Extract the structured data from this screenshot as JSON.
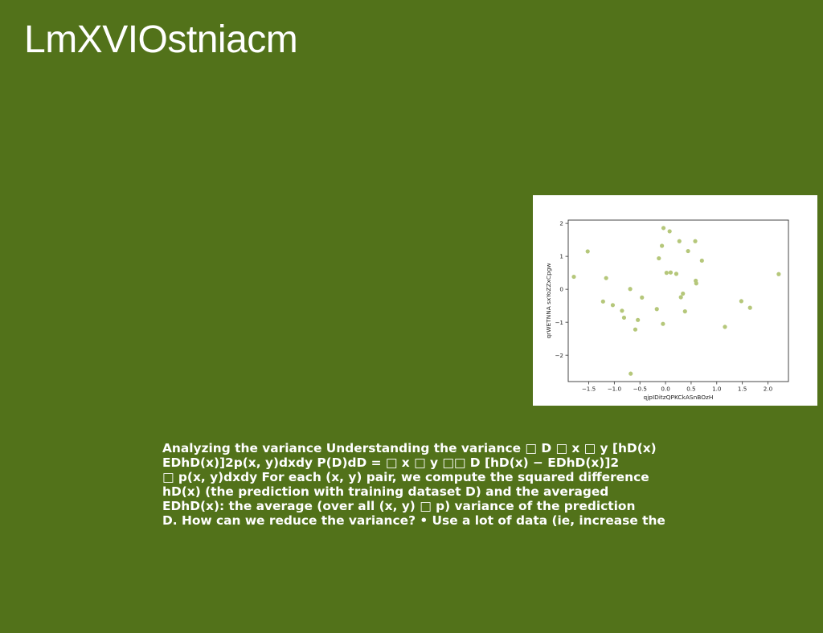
{
  "slide": {
    "title": "LmXVIOstniacm",
    "body_lines": [
      "Analyzing the variance Understanding the variance □ D □ x □ y [hD(x)",
      "EDhD(x)]2p(x, y)dxdy P(D)dD = □ x □ y □□ D [hD(x) − EDhD(x)]2",
      "□ p(x, y)dxdy For each (x, y) pair, we compute the squared difference",
      "hD(x) (the prediction with training dataset D) and the averaged",
      "EDhD(x): the average (over all (x, y) □ p) variance of the prediction",
      "D. How can we reduce the variance? • Use a lot of data (ie, increase the"
    ]
  },
  "colors": {
    "background": "#52721a",
    "text": "#ffffff",
    "marker": "#b5c77a"
  },
  "chart_data": {
    "type": "scatter",
    "title": "",
    "xlabel": "qjpIDitzQPKCkASnBOzH",
    "ylabel": "qrWETNNA sxYoZZxCpgw",
    "xlim": [
      -1.9,
      2.4
    ],
    "ylim": [
      -2.8,
      2.1
    ],
    "xticks": [
      -1.5,
      -1.0,
      -0.5,
      0.0,
      0.5,
      1.0,
      1.5,
      2.0
    ],
    "xtick_labels": [
      "−1.5",
      "−1.0",
      "−0.5",
      "0.0",
      "0.5",
      "1.0",
      "1.5",
      "2.0"
    ],
    "yticks": [
      -2,
      -1,
      0,
      1,
      2
    ],
    "ytick_labels": [
      "−2",
      "−1",
      "0",
      "1",
      "2"
    ],
    "grid": false,
    "x": [
      -1.79,
      -1.52,
      -1.22,
      -1.16,
      -1.03,
      -0.85,
      -0.81,
      -0.69,
      -0.68,
      -0.59,
      -0.54,
      -0.46,
      -0.17,
      -0.13,
      -0.07,
      -0.05,
      -0.04,
      0.02,
      0.08,
      0.1,
      0.21,
      0.27,
      0.3,
      0.34,
      0.38,
      0.44,
      0.58,
      0.59,
      0.6,
      0.71,
      1.16,
      1.48,
      1.65,
      2.21
    ],
    "y": [
      0.38,
      1.15,
      -0.37,
      0.34,
      -0.48,
      -0.65,
      -0.86,
      0.01,
      -2.56,
      -1.22,
      -0.93,
      -0.25,
      -0.6,
      0.94,
      1.32,
      -1.05,
      1.86,
      0.5,
      1.76,
      0.51,
      0.47,
      1.46,
      -0.24,
      -0.13,
      -0.67,
      1.16,
      1.46,
      0.26,
      0.18,
      0.87,
      -1.14,
      -0.36,
      -0.56,
      0.46
    ]
  }
}
